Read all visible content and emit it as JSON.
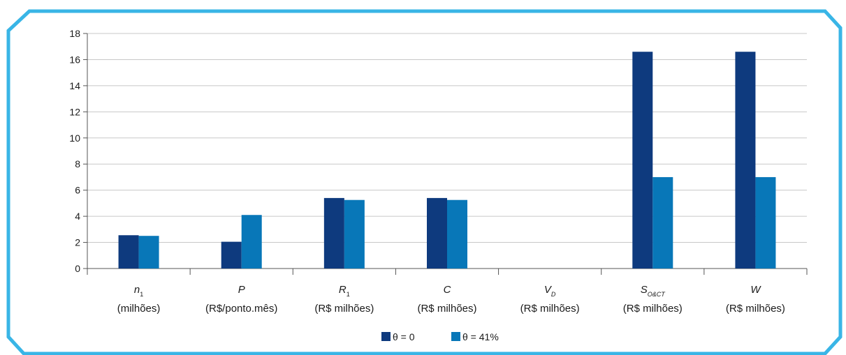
{
  "chart_data": {
    "type": "bar",
    "categories": [
      {
        "symbol": "n",
        "subscript": "1",
        "unit": "(milhões)"
      },
      {
        "symbol": "P",
        "subscript": "",
        "unit": "(R$/ponto.mês)"
      },
      {
        "symbol": "R",
        "subscript": "1",
        "unit": "(R$ milhões)"
      },
      {
        "symbol": "C",
        "subscript": "",
        "unit": "(R$ milhões)"
      },
      {
        "symbol": "V",
        "subscript": "D",
        "unit": "(R$ milhões)"
      },
      {
        "symbol": "S",
        "subscript": "O&CT",
        "unit": "(R$ milhões)"
      },
      {
        "symbol": "W",
        "subscript": "",
        "unit": "(R$ milhões)"
      }
    ],
    "series": [
      {
        "name": "θ = 0",
        "color": "#0e3a7e",
        "values": [
          2.55,
          2.05,
          5.4,
          5.4,
          0,
          16.6,
          16.6
        ]
      },
      {
        "name": "θ = 41%",
        "color": "#0877b8",
        "values": [
          2.5,
          4.1,
          5.25,
          5.25,
          0,
          7.0,
          7.0
        ]
      }
    ],
    "yticks": [
      "0",
      "2",
      "4",
      "6",
      "8",
      "10",
      "12",
      "14",
      "16",
      "18"
    ],
    "ylim": [
      0,
      18
    ],
    "grid": true,
    "legend_position": "bottom-center",
    "frame_color": "#39b5e6"
  }
}
